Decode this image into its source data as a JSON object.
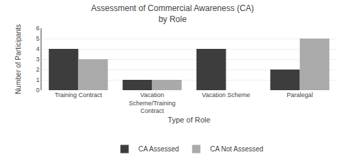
{
  "chart_data": {
    "type": "bar",
    "title": "Assessment of Commercial Awareness (CA)\nby Role",
    "xlabel": "Type of Role",
    "ylabel": "Number of Participants",
    "categories": [
      "Training Contract",
      "Vacation\nScheme/Training\nContract",
      "Vacation Scheme",
      "Paralegal"
    ],
    "series": [
      {
        "name": "CA Assessed",
        "color": "#3d3d3d",
        "values": [
          4,
          1,
          4,
          2
        ]
      },
      {
        "name": "CA Not Assessed",
        "color": "#aaaaaa",
        "values": [
          3,
          1,
          0,
          5
        ]
      }
    ],
    "ylim": [
      0,
      6
    ],
    "yticks": [
      0,
      1,
      2,
      3,
      4,
      5,
      6
    ],
    "grid": true,
    "legend": "bottom"
  }
}
